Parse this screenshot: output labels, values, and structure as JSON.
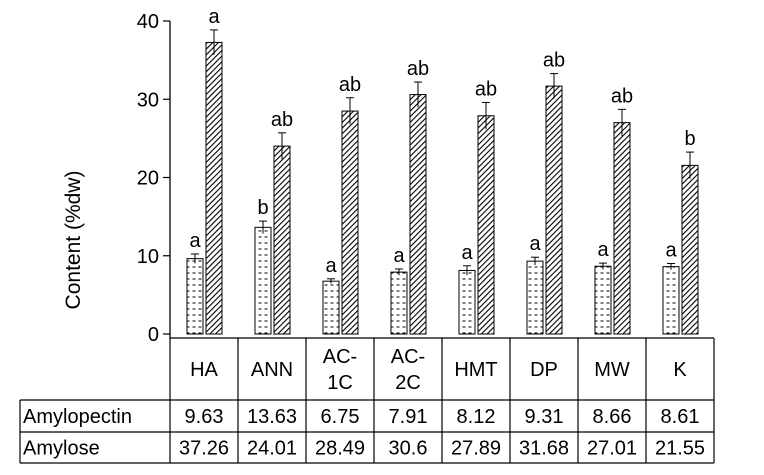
{
  "chart_data": {
    "type": "bar",
    "ylabel": "Content (%dw)",
    "ylim": [
      0,
      40
    ],
    "yticks": [
      0,
      10,
      20,
      30,
      40
    ],
    "categories": [
      "HA",
      "ANN",
      "AC-1C",
      "AC-2C",
      "HMT",
      "DP",
      "MW",
      "K"
    ],
    "category_label_lines": [
      [
        "HA"
      ],
      [
        "ANN"
      ],
      [
        "AC-",
        "1C"
      ],
      [
        "AC-",
        "2C"
      ],
      [
        "HMT"
      ],
      [
        "DP"
      ],
      [
        "MW"
      ],
      [
        "K"
      ]
    ],
    "series": [
      {
        "name": "Amylopectin",
        "values": [
          9.63,
          13.63,
          6.75,
          7.91,
          8.12,
          9.31,
          8.66,
          8.61
        ],
        "errors": [
          0.6,
          0.8,
          0.3,
          0.4,
          0.6,
          0.5,
          0.4,
          0.4
        ],
        "letters": [
          "a",
          "b",
          "a",
          "a",
          "a",
          "a",
          "a",
          "a"
        ],
        "pattern": "dashed-horizontal"
      },
      {
        "name": "Amylose",
        "values": [
          37.26,
          24.01,
          28.49,
          30.6,
          27.89,
          31.68,
          27.01,
          21.55
        ],
        "errors": [
          1.6,
          1.7,
          1.7,
          1.6,
          1.7,
          1.6,
          1.7,
          1.7
        ],
        "letters": [
          "a",
          "ab",
          "ab",
          "ab",
          "ab",
          "ab",
          "ab",
          "b"
        ],
        "pattern": "diagonal-hatch"
      }
    ],
    "table": {
      "rows": [
        {
          "label": "Amylopectin",
          "values": [
            "9.63",
            "13.63",
            "6.75",
            "7.91",
            "8.12",
            "9.31",
            "8.66",
            "8.61"
          ]
        },
        {
          "label": "Amylose",
          "values": [
            "37.26",
            "24.01",
            "28.49",
            "30.6",
            "27.89",
            "31.68",
            "27.01",
            "21.55"
          ]
        }
      ]
    },
    "grid": false,
    "legend": "data-table"
  }
}
